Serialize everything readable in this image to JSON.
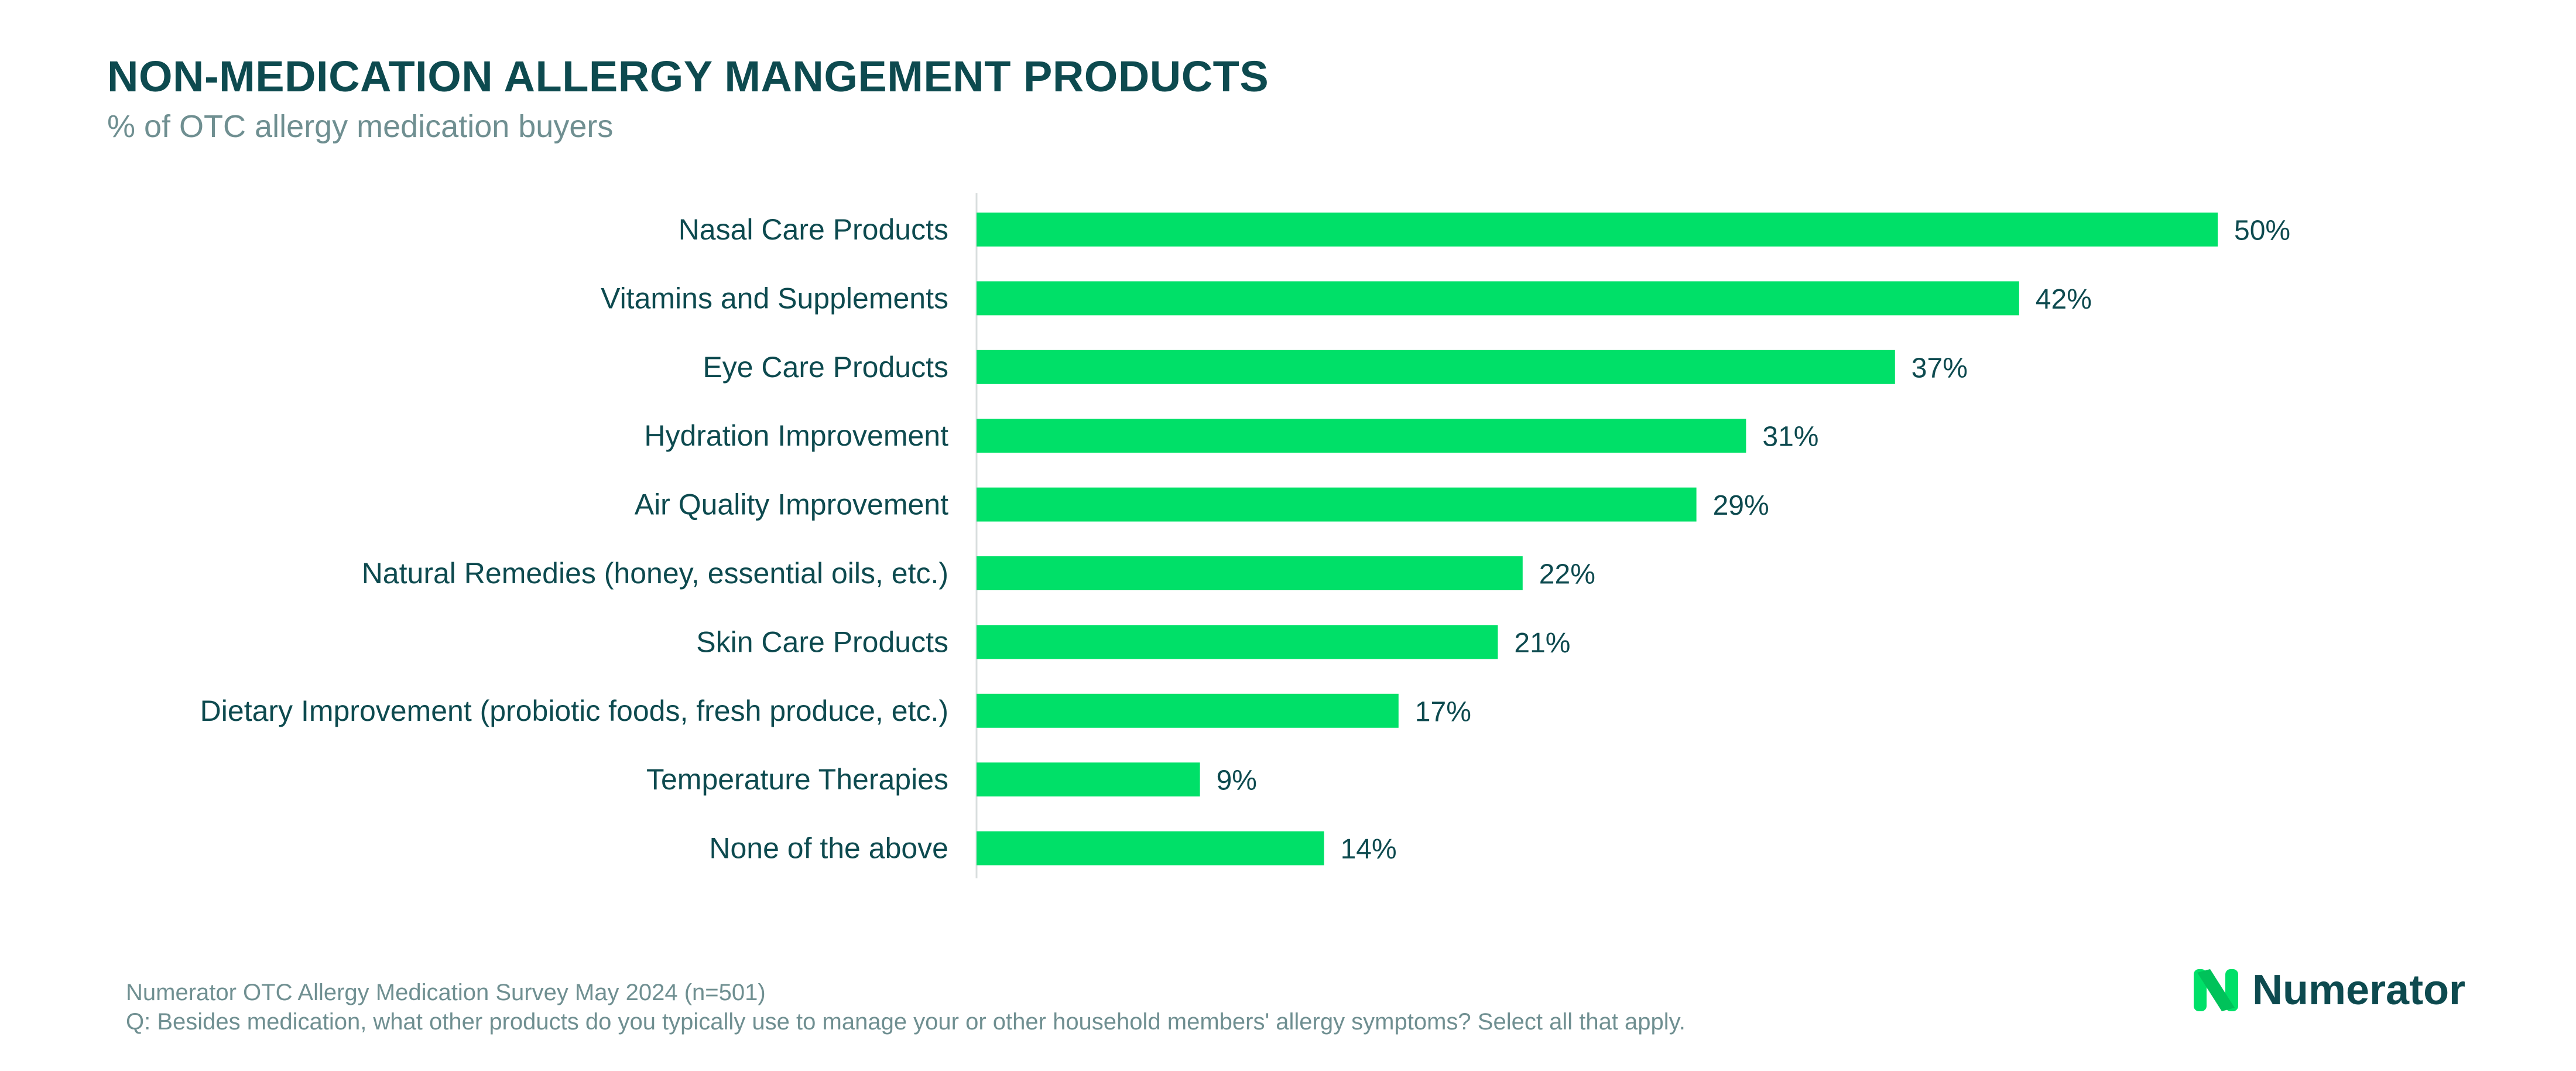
{
  "header": {
    "title": "NON-MEDICATION ALLERGY MANGEMENT PRODUCTS",
    "subtitle": "% of OTC allergy medication buyers"
  },
  "chart_data": {
    "type": "bar",
    "orientation": "horizontal",
    "categories": [
      "Nasal Care Products",
      "Vitamins and Supplements",
      "Eye Care Products",
      "Hydration Improvement",
      "Air Quality Improvement",
      "Natural Remedies (honey, essential oils, etc.)",
      "Skin Care Products",
      "Dietary Improvement (probiotic foods, fresh produce, etc.)",
      "Temperature Therapies",
      "None of the above"
    ],
    "values": [
      50,
      42,
      37,
      31,
      29,
      22,
      21,
      17,
      9,
      14
    ],
    "value_labels": [
      "50%",
      "42%",
      "37%",
      "31%",
      "29%",
      "22%",
      "21%",
      "17%",
      "9%",
      "14%"
    ],
    "unit": "%",
    "xlim": [
      0,
      50
    ],
    "bar_color": "#00e068",
    "axis_color": "#d8dede",
    "grid": false,
    "legend": "none"
  },
  "footer": {
    "source": "Numerator OTC Allergy Medication Survey May 2024 (n=501)",
    "question": "Q: Besides medication, what other products do you typically use to manage your or other household members' allergy symptoms? Select all that apply."
  },
  "brand": {
    "name": "Numerator",
    "icon": "numerator-n-logo-icon",
    "accent": "#00e068",
    "text_color": "#0d4a4f"
  }
}
